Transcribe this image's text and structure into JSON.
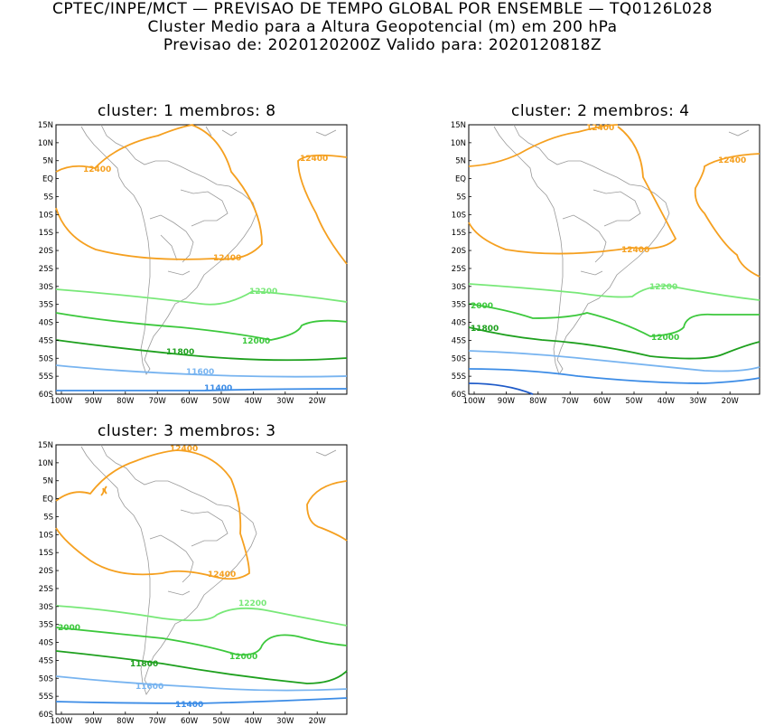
{
  "header": {
    "line1": "CPTEC/INPE/MCT — PREVISAO DE TEMPO GLOBAL POR ENSEMBLE — TQ0126L028",
    "line2": "Cluster Medio para a Altura Geopotencial (m) em 200 hPa",
    "line3": "Previsao de: 2020120200Z    Valido para: 2020120818Z"
  },
  "colors": {
    "c12400": "#f5a020",
    "c12200": "#78e878",
    "c12000": "#3cc83c",
    "c11800": "#1ea01e",
    "c11600": "#78b4f0",
    "c11400": "#3c8ce6",
    "c11200": "#1e5ac8",
    "coast": "#9a9a9a"
  },
  "axes": {
    "lat_ticks": [
      "15N",
      "10N",
      "5N",
      "EQ",
      "5S",
      "10S",
      "15S",
      "20S",
      "25S",
      "30S",
      "35S",
      "40S",
      "45S",
      "50S",
      "55S",
      "60S"
    ],
    "lon_ticks": [
      "100W",
      "90W",
      "80W",
      "70W",
      "60W",
      "50W",
      "40W",
      "30W",
      "20W"
    ]
  },
  "panels": [
    {
      "title": "cluster: 1   membros: 8",
      "labels": {
        "a": "12400",
        "b": "12400",
        "c": "12400",
        "d": "12200",
        "e": "12000",
        "f": "11800",
        "g": "11600",
        "h": "11400"
      }
    },
    {
      "title": "cluster: 2   membros: 4",
      "labels": {
        "a": "12400",
        "b": "12400",
        "c": "12400",
        "d": "12200",
        "e": "2000",
        "f": "12000",
        "g": "11800"
      }
    },
    {
      "title": "cluster: 3   membros: 3",
      "labels": {
        "a": "12400",
        "b": "12400",
        "d": "12200",
        "e": "2000",
        "f": "12000",
        "g": "11800",
        "h": "11600",
        "i": "11400"
      }
    }
  ]
}
